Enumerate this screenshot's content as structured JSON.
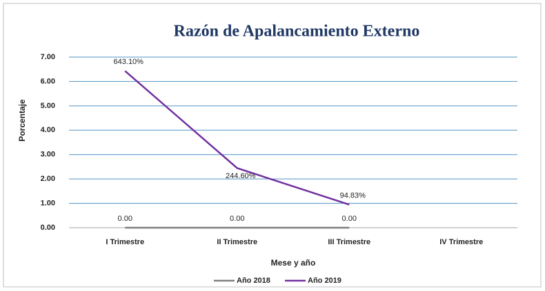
{
  "chart_data": {
    "type": "line",
    "title": "Razón de Apalancamiento Externo",
    "x_label": "Mese y año",
    "y_label": "Porcentaje",
    "categories": [
      "I Trimestre",
      "II Trimestre",
      "III Trimestre",
      "IV Trimestre"
    ],
    "series": [
      {
        "name": "Año 2018",
        "color": "#7f7f7f",
        "values": [
          0,
          0,
          0,
          null
        ],
        "value_labels": [
          "0.00",
          "0.00",
          "0.00",
          null
        ]
      },
      {
        "name": "Año 2019",
        "color": "#7030a0",
        "values": [
          6.431,
          2.446,
          0.9483,
          null
        ],
        "value_labels": [
          "643.10%",
          "244.60%",
          "94.83%",
          null
        ]
      }
    ],
    "ylim": [
      0,
      7
    ],
    "yticks": [
      {
        "value": 0,
        "label": "0.00"
      },
      {
        "value": 1,
        "label": "1.00"
      },
      {
        "value": 2,
        "label": "2.00"
      },
      {
        "value": 3,
        "label": "3.00"
      },
      {
        "value": 4,
        "label": "4.00"
      },
      {
        "value": 5,
        "label": "5.00"
      },
      {
        "value": 6,
        "label": "6.00"
      },
      {
        "value": 7,
        "label": "7.00"
      }
    ],
    "grid": true,
    "legend": "bottom"
  }
}
